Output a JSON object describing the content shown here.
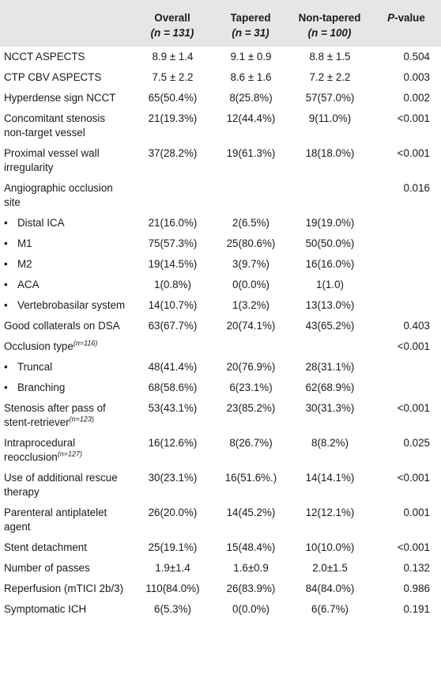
{
  "header": {
    "col1": "Overall",
    "col1_n": "(n = 131)",
    "col2": "Tapered",
    "col2_n": "(n = 31)",
    "col3": "Non-tapered",
    "col3_n": "(n = 100)",
    "col4_p": "P",
    "col4_rest": "-value"
  },
  "rows": [
    {
      "label": "NCCT ASPECTS",
      "v1": "8.9 ± 1.4",
      "v2": "9.1 ± 0.9",
      "v3": "8.8 ± 1.5",
      "p": "0.504"
    },
    {
      "label": "CTP CBV ASPECTS",
      "v1": "7.5 ± 2.2",
      "v2": "8.6 ± 1.6",
      "v3": "7.2 ± 2.2",
      "p": "0.003"
    },
    {
      "label": "Hyperdense sign NCCT",
      "v1": "65(50.4%)",
      "v2": "8(25.8%)",
      "v3": "57(57.0%)",
      "p": "0.002"
    },
    {
      "label": "Concomitant stenosis non-target vessel",
      "v1": "21(19.3%)",
      "v2": "12(44.4%)",
      "v3": "9(11.0%)",
      "p": "<0.001"
    },
    {
      "label": "Proximal vessel wall irregularity",
      "v1": "37(28.2%)",
      "v2": "19(61.3%)",
      "v3": "18(18.0%)",
      "p": "<0.001"
    },
    {
      "label": "Angiographic occlusion site",
      "v1": "",
      "v2": "",
      "v3": "",
      "p": "0.016"
    },
    {
      "label": "Distal ICA",
      "bullet": "•",
      "v1": "21(16.0%)",
      "v2": "2(6.5%)",
      "v3": "19(19.0%)",
      "p": ""
    },
    {
      "label": "M1",
      "bullet": "•",
      "v1": "75(57.3%)",
      "v2": "25(80.6%)",
      "v3": "50(50.0%)",
      "p": ""
    },
    {
      "label": "M2",
      "bullet": "•",
      "v1": "19(14.5%)",
      "v2": "3(9.7%)",
      "v3": "16(16.0%)",
      "p": ""
    },
    {
      "label": "ACA",
      "bullet": "•",
      "v1": "1(0.8%)",
      "v2": "0(0.0%)",
      "v3": "1(1.0)",
      "p": ""
    },
    {
      "label": "Vertebrobasilar system",
      "bullet": "•",
      "v1": "14(10.7%)",
      "v2": "1(3.2%)",
      "v3": "13(13.0%)",
      "p": ""
    },
    {
      "label": "Good collaterals on DSA",
      "v1": "63(67.7%)",
      "v2": "20(74.1%)",
      "v3": "43(65.2%)",
      "p": "0.403"
    },
    {
      "label": "Occlusion type",
      "sup": "(n=116)",
      "v1": "",
      "v2": "",
      "v3": "",
      "p": "<0.001"
    },
    {
      "label": "Truncal",
      "bullet": "•",
      "v1": "48(41.4%)",
      "v2": "20(76.9%)",
      "v3": "28(31.1%)",
      "p": ""
    },
    {
      "label": "Branching",
      "bullet": "•",
      "v1": "68(58.6%)",
      "v2": "6(23.1%)",
      "v3": "62(68.9%)",
      "p": ""
    },
    {
      "label": "Stenosis after pass of stent-retriever",
      "sup": "(n=123)",
      "v1": "53(43.1%)",
      "v2": "23(85.2%)",
      "v3": "30(31.3%)",
      "p": "<0.001"
    },
    {
      "label": "Intraprocedural reocclusion",
      "sup": "(n=127)",
      "v1": "16(12.6%)",
      "v2": "8(26.7%)",
      "v3": "8(8.2%)",
      "p": "0.025"
    },
    {
      "label": "Use of additional rescue therapy",
      "v1": "30(23.1%)",
      "v2": "16(51.6%.)",
      "v3": "14(14.1%)",
      "p": "<0.001"
    },
    {
      "label": "Parenteral antiplatelet agent",
      "v1": "26(20.0%)",
      "v2": "14(45.2%)",
      "v3": "12(12.1%)",
      "p": "0.001"
    },
    {
      "label": "Stent detachment",
      "v1": "25(19.1%)",
      "v2": "15(48.4%)",
      "v3": "10(10.0%)",
      "p": "<0.001"
    },
    {
      "label": "Number of passes",
      "v1": "1.9±1.4",
      "v2": "1.6±0.9",
      "v3": "2.0±1.5",
      "p": "0.132"
    },
    {
      "label": "Reperfusion (mTICI 2b/3)",
      "v1": "110(84.0%)",
      "v2": "26(83.9%)",
      "v3": "84(84.0%)",
      "p": "0.986"
    },
    {
      "label": "Symptomatic ICH",
      "v1": "6(5.3%)",
      "v2": "0(0.0%)",
      "v3": "6(6.7%)",
      "p": "0.191"
    }
  ]
}
